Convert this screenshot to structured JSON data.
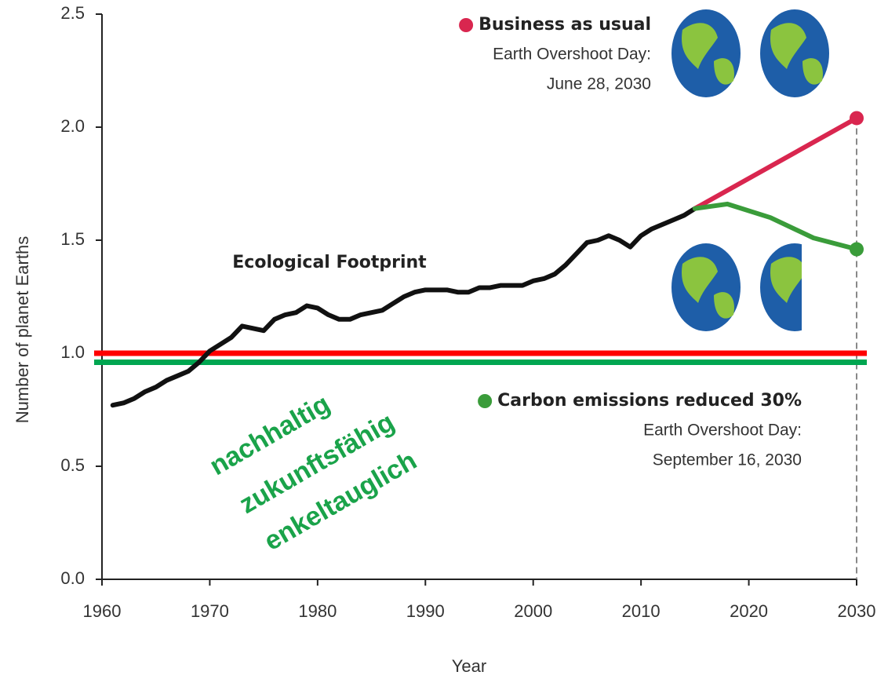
{
  "chart_data": {
    "type": "line",
    "x_label": "Year",
    "y_label": "Number of planet Earths",
    "xlim": [
      1960,
      2030
    ],
    "xticks": [
      1960,
      1970,
      1980,
      1990,
      2000,
      2010,
      2020,
      2030
    ],
    "ylim": [
      0,
      2.5
    ],
    "yticks": [
      {
        "value": 0,
        "label": "0.0"
      },
      0.5,
      {
        "value": 1,
        "label": "1.0"
      },
      1.5,
      {
        "value": 2,
        "label": "2.0"
      },
      2.5
    ],
    "series": [
      {
        "name": "Ecological Footprint",
        "color": "#111111",
        "x": [
          1961,
          1962,
          1963,
          1964,
          1965,
          1966,
          1967,
          1968,
          1969,
          1970,
          1971,
          1972,
          1973,
          1974,
          1975,
          1976,
          1977,
          1978,
          1979,
          1980,
          1981,
          1982,
          1983,
          1984,
          1985,
          1986,
          1987,
          1988,
          1989,
          1990,
          1991,
          1992,
          1993,
          1994,
          1995,
          1996,
          1997,
          1998,
          1999,
          2000,
          2001,
          2002,
          2003,
          2004,
          2005,
          2006,
          2007,
          2008,
          2009,
          2010,
          2011,
          2012,
          2013,
          2014,
          2015
        ],
        "values": [
          0.77,
          0.78,
          0.8,
          0.83,
          0.85,
          0.88,
          0.9,
          0.92,
          0.96,
          1.01,
          1.04,
          1.07,
          1.12,
          1.11,
          1.1,
          1.15,
          1.17,
          1.18,
          1.21,
          1.2,
          1.17,
          1.15,
          1.15,
          1.17,
          1.18,
          1.19,
          1.22,
          1.25,
          1.27,
          1.28,
          1.28,
          1.28,
          1.27,
          1.27,
          1.29,
          1.29,
          1.3,
          1.3,
          1.3,
          1.32,
          1.33,
          1.35,
          1.39,
          1.44,
          1.49,
          1.5,
          1.52,
          1.5,
          1.47,
          1.52,
          1.55,
          1.57,
          1.59,
          1.61,
          1.64
        ]
      },
      {
        "name": "Business as usual",
        "color": "#d9264f",
        "x": [
          2015,
          2030
        ],
        "values": [
          1.64,
          2.04
        ],
        "overshoot_label": "Earth Overshoot Day:",
        "overshoot_date": "June 28, 2030"
      },
      {
        "name": "Carbon emissions reduced 30%",
        "color": "#3a9c3a",
        "x": [
          2015,
          2018,
          2022,
          2026,
          2030
        ],
        "values": [
          1.64,
          1.66,
          1.6,
          1.51,
          1.46
        ],
        "overshoot_label": "Earth Overshoot Day:",
        "overshoot_date": "September 16, 2030"
      }
    ],
    "reference_lines": [
      {
        "value": 1.0,
        "color": "#ff0000"
      },
      {
        "value": 0.96,
        "color": "#00a651"
      }
    ],
    "slogans": [
      "nachhaltig",
      "zukunftsfähig",
      "enkeltauglich"
    ],
    "slogan_color": "#1aa34a"
  }
}
